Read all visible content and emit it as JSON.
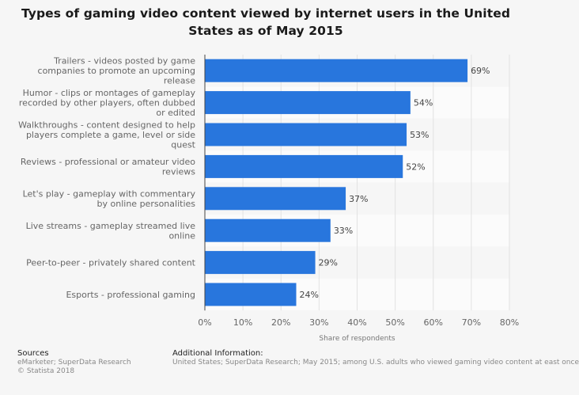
{
  "chart_data": {
    "type": "bar",
    "orientation": "horizontal",
    "title": "Types of gaming video content viewed by internet users in the United States as of May 2015",
    "xlabel": "Share of respondents",
    "ylabel": "",
    "xlim": [
      0,
      80
    ],
    "x_ticks": [
      "0%",
      "10%",
      "20%",
      "30%",
      "40%",
      "50%",
      "60%",
      "70%",
      "80%"
    ],
    "bar_color": "#2876dd",
    "grid": true,
    "categories": [
      [
        "Trailers - videos posted by game",
        "companies to promote an upcoming",
        "release"
      ],
      [
        "Humor - clips or montages of gameplay",
        "recorded by other players, often dubbed",
        "or edited"
      ],
      [
        "Walkthroughs - content designed to help",
        "players complete a game, level or side",
        "quest"
      ],
      [
        "Reviews - professional or amateur video",
        "reviews"
      ],
      [
        "Let's play - gameplay with commentary",
        "by online personalities"
      ],
      [
        "Live streams - gameplay streamed live",
        "online"
      ],
      [
        "Peer-to-peer - privately shared content"
      ],
      [
        "Esports - professional gaming"
      ]
    ],
    "values": [
      69,
      54,
      53,
      52,
      37,
      33,
      29,
      24
    ],
    "value_labels": [
      "69%",
      "54%",
      "53%",
      "52%",
      "37%",
      "33%",
      "29%",
      "24%"
    ]
  },
  "footer": {
    "sources_heading": "Sources",
    "sources_text": "eMarketer; SuperData Research",
    "copyright": "© Statista 2018",
    "additional_heading": "Additional Information:",
    "additional_text": "United States; SuperData Research; May 2015; among U.S. adults who viewed gaming video content at east once"
  }
}
